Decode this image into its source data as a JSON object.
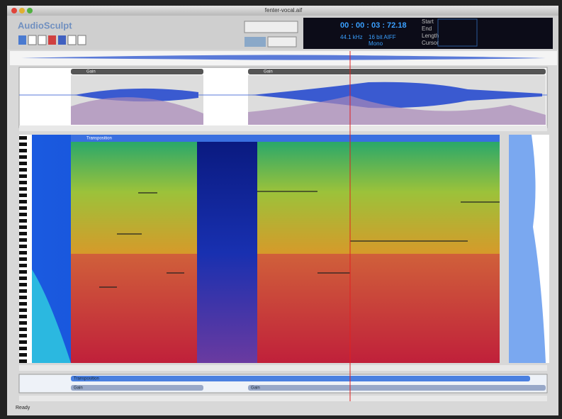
{
  "window": {
    "title": "fenter-vocal.aif"
  },
  "toolbar": {
    "app": "AudioSculpt",
    "time": "00 : 00 : 03 : 72.18",
    "fields": [
      "Start",
      "End",
      "Length",
      "Cursor"
    ],
    "format": [
      "44.1 kHz",
      "16 bit AIFF",
      "Mono"
    ]
  },
  "waveform": {
    "segments": [
      {
        "label": "Gain"
      },
      {
        "label": "Gain"
      }
    ]
  },
  "spectrogram": {
    "label": "Transposition"
  },
  "tracks": {
    "rows": [
      "Transposition",
      "Gain",
      "Gain"
    ]
  },
  "status": "Ready"
}
